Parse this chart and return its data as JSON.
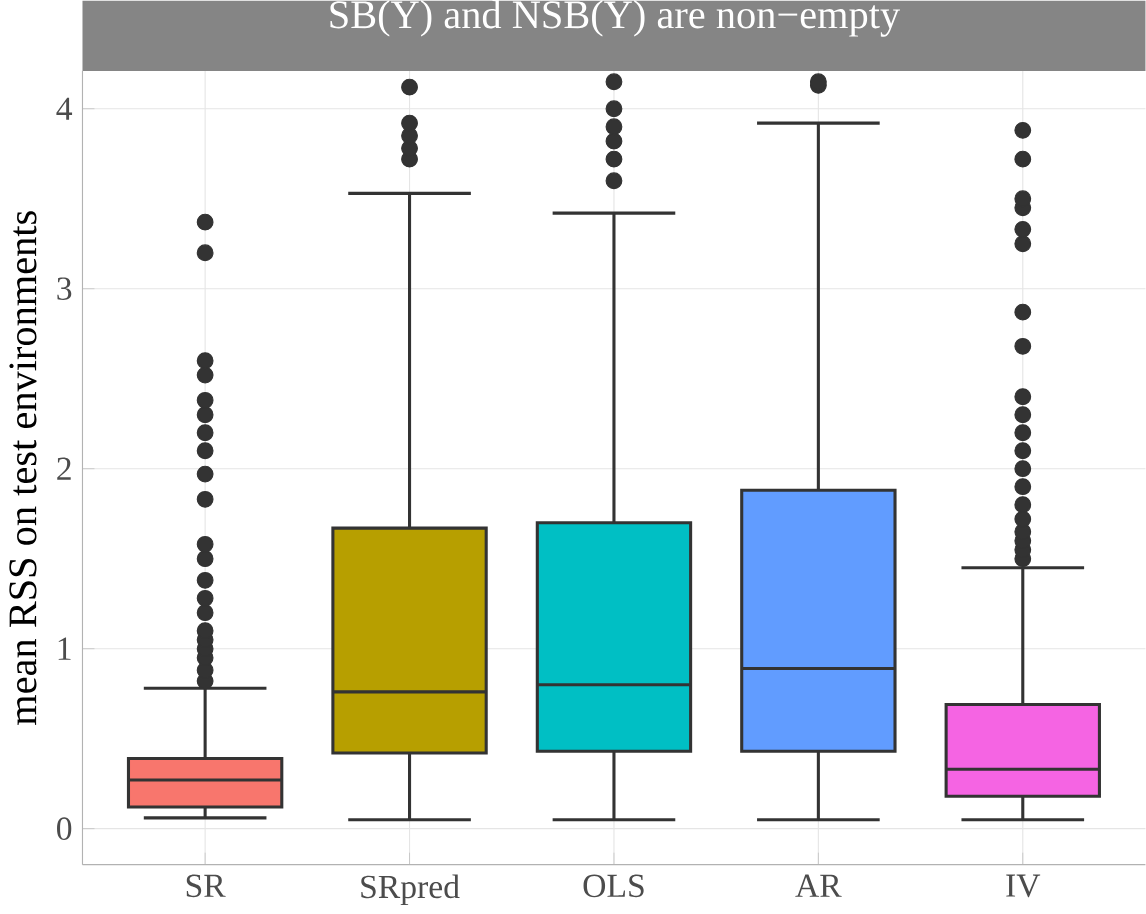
{
  "chart_data": {
    "type": "box",
    "title": "SB(Y) and NSB(Y) are non−empty",
    "ylabel": "mean RSS on test environments",
    "categories": [
      "SR",
      "SRpred",
      "OLS",
      "AR",
      "IV"
    ],
    "colors": [
      "#f8766d",
      "#b79f00",
      "#00bfc4",
      "#619cff",
      "#f564e3"
    ],
    "boxes": [
      {
        "low": 0.06,
        "q1": 0.12,
        "median": 0.27,
        "q3": 0.39,
        "high": 0.78,
        "outliers": [
          0.82,
          0.88,
          0.95,
          1.0,
          1.05,
          1.1,
          1.2,
          1.28,
          1.38,
          1.5,
          1.58,
          1.83,
          1.97,
          2.1,
          2.2,
          2.3,
          2.38,
          2.52,
          2.6,
          3.2,
          3.37
        ]
      },
      {
        "low": 0.05,
        "q1": 0.42,
        "median": 0.76,
        "q3": 1.67,
        "high": 3.53,
        "outliers": [
          3.72,
          3.78,
          3.85,
          3.92,
          4.12
        ]
      },
      {
        "low": 0.05,
        "q1": 0.43,
        "median": 0.8,
        "q3": 1.7,
        "high": 3.42,
        "outliers": [
          3.6,
          3.72,
          3.82,
          3.9,
          4.0,
          4.15
        ]
      },
      {
        "low": 0.05,
        "q1": 0.43,
        "median": 0.89,
        "q3": 1.88,
        "high": 3.92,
        "outliers": [
          4.13,
          4.15
        ]
      },
      {
        "low": 0.05,
        "q1": 0.18,
        "median": 0.33,
        "q3": 0.69,
        "high": 1.45,
        "outliers": [
          1.5,
          1.55,
          1.6,
          1.65,
          1.72,
          1.8,
          1.9,
          2.0,
          2.1,
          2.2,
          2.3,
          2.4,
          2.68,
          2.87,
          3.25,
          3.33,
          3.45,
          3.5,
          3.72,
          3.88
        ]
      }
    ],
    "ylim": [
      -0.2,
      4.21
    ],
    "yticks": [
      0,
      1,
      2,
      3,
      4
    ],
    "grid": true
  }
}
